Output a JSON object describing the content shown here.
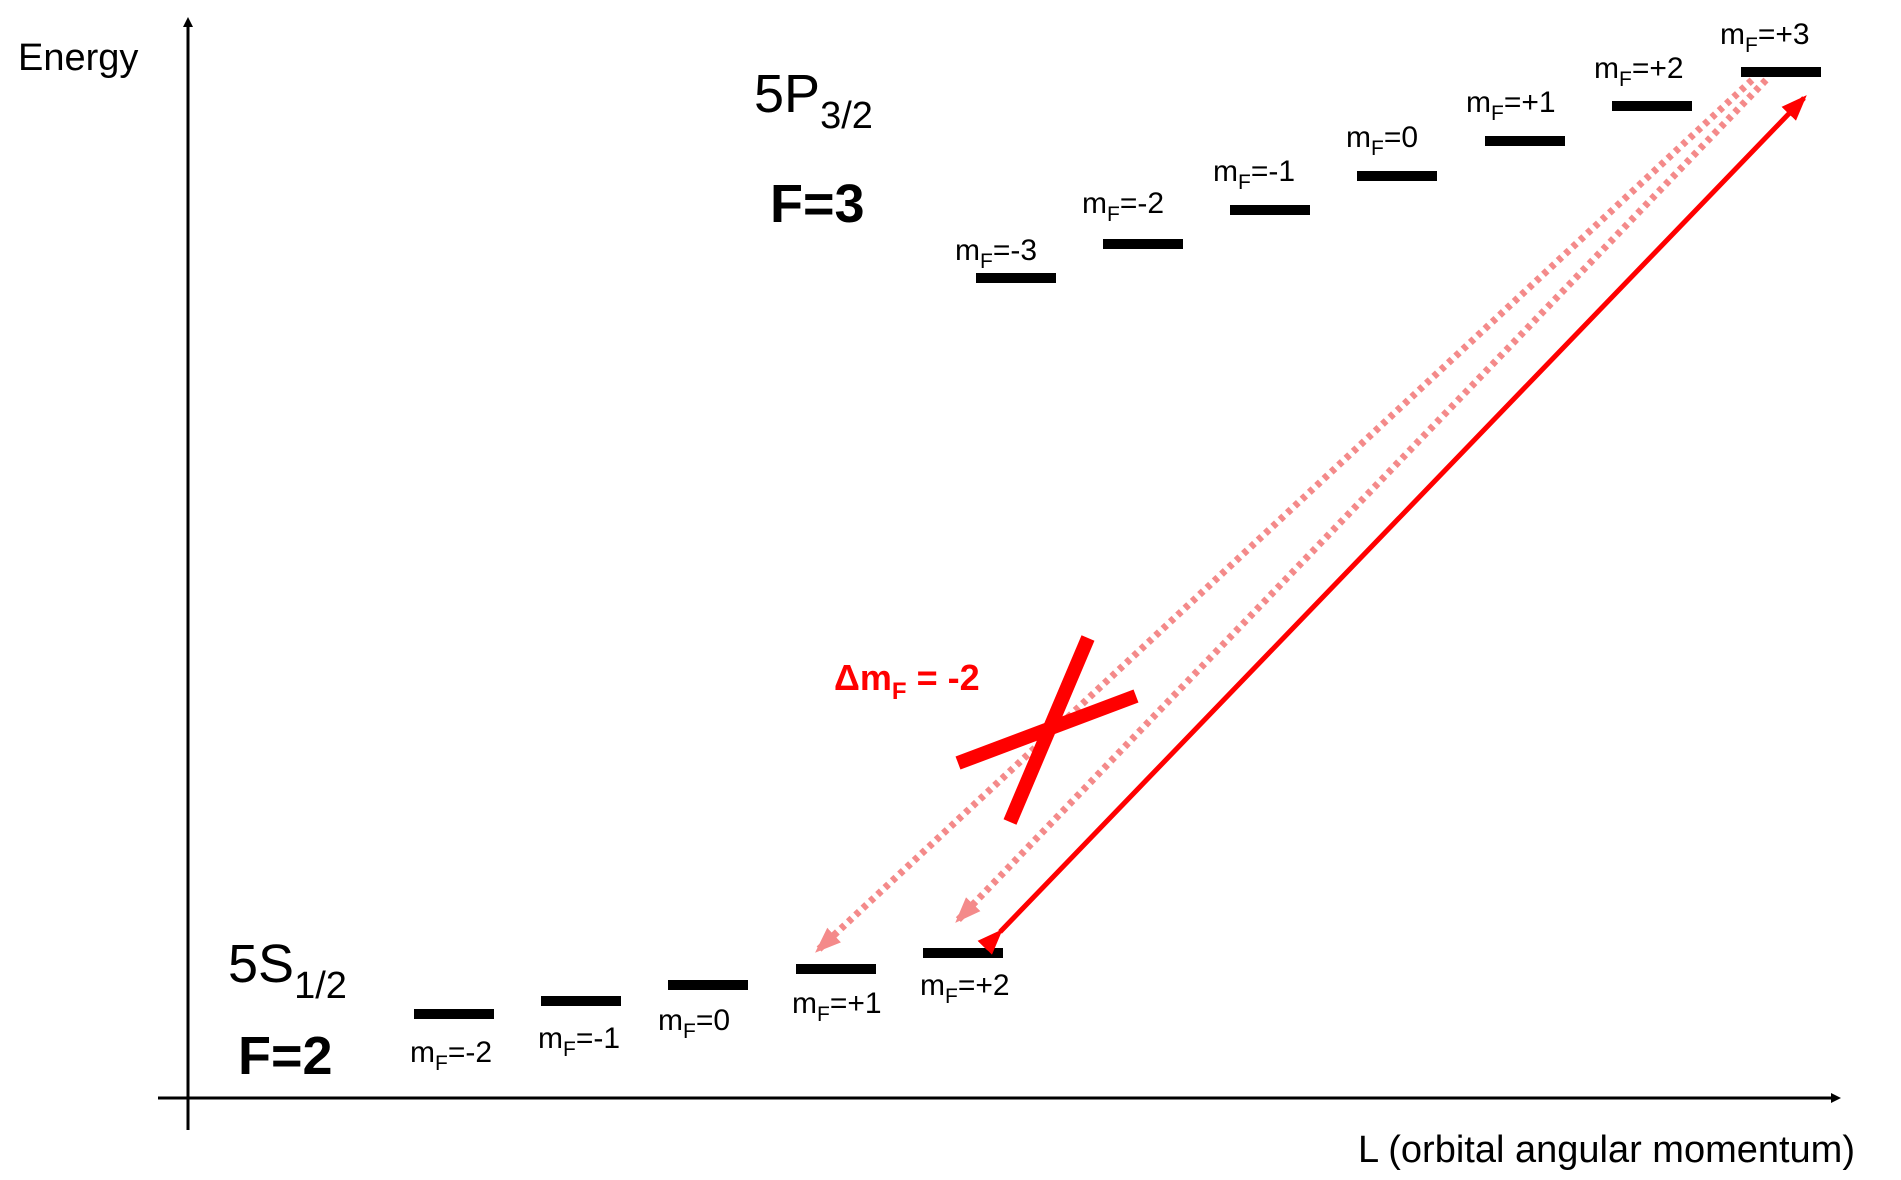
{
  "axes": {
    "y_label": "Energy",
    "x_label": "L (orbital angular momentum)"
  },
  "excited_state": {
    "term": "5P",
    "term_sub": "3/2",
    "f_label": "F=3",
    "sublevels": [
      {
        "m": "m",
        "sub": "F",
        "val": "=-3"
      },
      {
        "m": "m",
        "sub": "F",
        "val": "=-2"
      },
      {
        "m": "m",
        "sub": "F",
        "val": "=-1"
      },
      {
        "m": "m",
        "sub": "F",
        "val": "=0"
      },
      {
        "m": "m",
        "sub": "F",
        "val": "=+1"
      },
      {
        "m": "m",
        "sub": "F",
        "val": "=+2"
      },
      {
        "m": "m",
        "sub": "F",
        "val": "=+3"
      }
    ]
  },
  "ground_state": {
    "term": "5S",
    "term_sub": "1/2",
    "f_label": "F=2",
    "sublevels": [
      {
        "m": "m",
        "sub": "F",
        "val": "=-2"
      },
      {
        "m": "m",
        "sub": "F",
        "val": "=-1"
      },
      {
        "m": "m",
        "sub": "F",
        "val": "=0"
      },
      {
        "m": "m",
        "sub": "F",
        "val": "=+1"
      },
      {
        "m": "m",
        "sub": "F",
        "val": "=+2"
      }
    ]
  },
  "forbidden_transition": {
    "label_delta": "Δm",
    "label_sub": "F",
    "label_rest": " = -2"
  },
  "colors": {
    "allowed_arrow": "#ff0000",
    "forbidden_arrow": "#f48a8a",
    "cross": "#ff0000",
    "levels": "#000000"
  }
}
